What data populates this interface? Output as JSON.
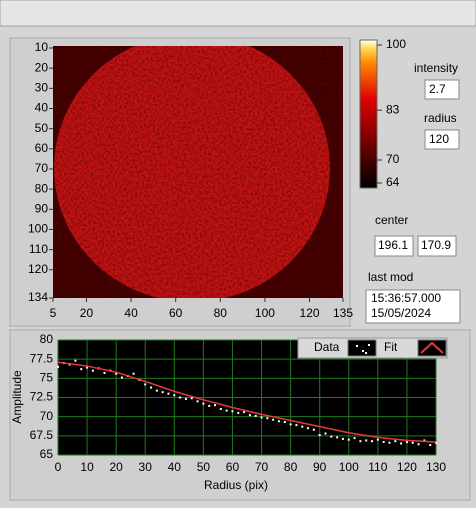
{
  "image_panel": {
    "xlim": [
      5,
      135
    ],
    "xticks": [
      5,
      20,
      40,
      60,
      80,
      100,
      120,
      135
    ],
    "ylim": [
      9,
      134
    ],
    "yticks": [
      10,
      20,
      30,
      40,
      50,
      60,
      70,
      80,
      90,
      100,
      110,
      120,
      134
    ],
    "colorbar": {
      "lim": [
        64,
        100
      ],
      "ticks": [
        100,
        83,
        70,
        64
      ]
    }
  },
  "controls": {
    "intensity": {
      "label": "intensity",
      "value": 2.7
    },
    "radius": {
      "label": "radius",
      "value": 120
    },
    "center": {
      "label": "center",
      "values": [
        196.1,
        170.9
      ]
    },
    "last_mod": {
      "label": "last mod",
      "time": "15:36:57.000",
      "date": "15/05/2024"
    }
  },
  "chart_data": {
    "type": "scatter",
    "x_label": "Radius (pix)",
    "y_label": "Amplitude",
    "xlim": [
      0,
      130
    ],
    "ylim": [
      65,
      80
    ],
    "xticks": [
      0,
      10,
      20,
      30,
      40,
      50,
      60,
      70,
      80,
      90,
      100,
      110,
      120,
      130
    ],
    "yticks": [
      65,
      67.5,
      70,
      72.5,
      75,
      77.5,
      80
    ],
    "grid": true,
    "grid_color": "#1e7a1e",
    "background": "#000000",
    "legend": "top-right",
    "series": [
      {
        "name": "Data",
        "color": "#ffffff",
        "mode": "points",
        "x": [
          0,
          2,
          4,
          6,
          8,
          10,
          12,
          14,
          16,
          18,
          20,
          22,
          24,
          26,
          28,
          30,
          32,
          34,
          36,
          38,
          40,
          42,
          44,
          46,
          48,
          50,
          52,
          54,
          56,
          58,
          60,
          62,
          64,
          66,
          68,
          70,
          72,
          74,
          76,
          78,
          80,
          82,
          84,
          86,
          88,
          90,
          92,
          94,
          96,
          98,
          100,
          102,
          104,
          106,
          108,
          110,
          112,
          114,
          116,
          118,
          120,
          122,
          124,
          126,
          128,
          130
        ],
        "values": [
          76.5,
          77.0,
          76.8,
          77.3,
          76.2,
          76.4,
          76.0,
          76.3,
          75.7,
          76.0,
          75.6,
          75.1,
          75.3,
          75.6,
          74.8,
          74.2,
          73.8,
          73.4,
          73.2,
          73.0,
          72.8,
          72.5,
          72.3,
          72.4,
          72.0,
          71.7,
          71.4,
          71.5,
          71.0,
          70.8,
          70.7,
          70.5,
          70.6,
          70.2,
          70.1,
          69.9,
          69.8,
          69.6,
          69.4,
          69.3,
          69.0,
          68.9,
          68.7,
          68.5,
          68.3,
          67.6,
          67.8,
          67.4,
          67.3,
          67.1,
          67.0,
          67.2,
          66.8,
          66.9,
          66.8,
          67.0,
          66.7,
          66.6,
          66.8,
          66.5,
          66.7,
          66.6,
          66.4,
          66.9,
          66.3,
          66.6
        ]
      },
      {
        "name": "Fit",
        "color": "#e8383c",
        "mode": "line",
        "x": [
          0,
          10,
          20,
          30,
          40,
          50,
          60,
          70,
          80,
          90,
          100,
          110,
          120,
          130
        ],
        "values": [
          77.1,
          76.6,
          75.8,
          74.6,
          73.3,
          72.2,
          71.2,
          70.3,
          69.5,
          68.7,
          67.9,
          67.3,
          66.9,
          66.7
        ]
      }
    ]
  }
}
